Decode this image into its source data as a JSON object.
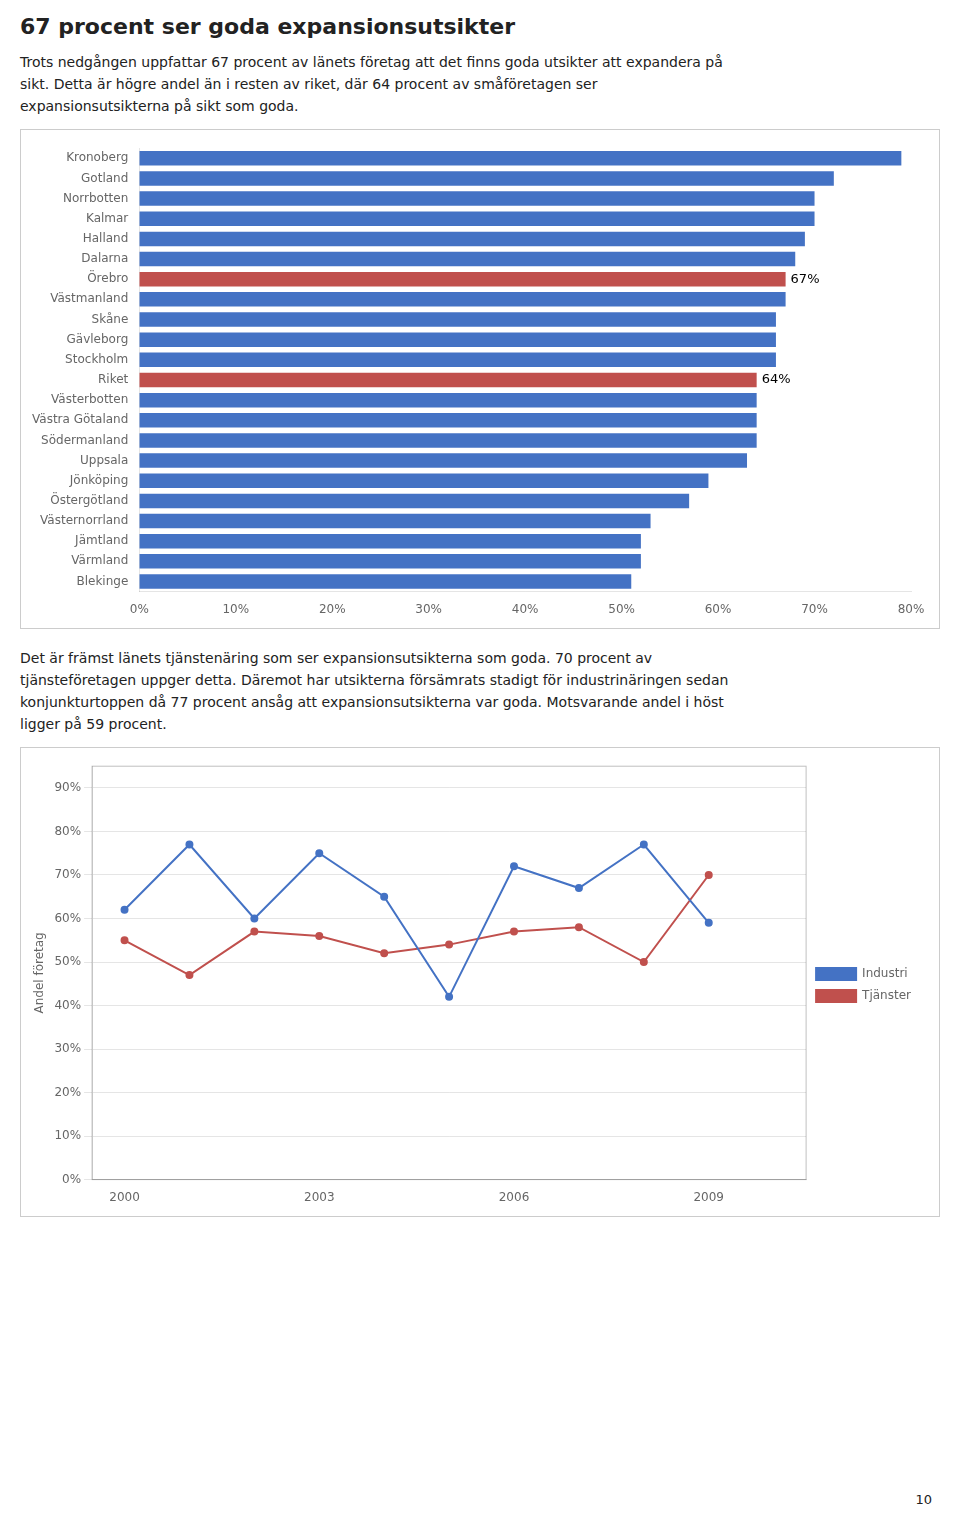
{
  "chart_data": [
    {
      "type": "bar",
      "title": "67 procent ser goda expansionsutsikter",
      "subtitle": [
        "Trots nedgången uppfattar 67 procent av länets företag att det finns goda utsikter att expandera på",
        "sikt. Detta är högre andel än i resten av riket, där 64 procent av småföretagen ser",
        "expansionsutsikterna på sikt som goda."
      ],
      "orientation": "horizontal",
      "categories": [
        "Kronoberg",
        "Gotland",
        "Norrbotten",
        "Kalmar",
        "Halland",
        "Dalarna",
        "Örebro",
        "Västmanland",
        "Skåne",
        "Gävleborg",
        "Stockholm",
        "Riket",
        "Västerbotten",
        "Västra Götaland",
        "Södermanland",
        "Uppsala",
        "Jönköping",
        "Östergötland",
        "Västernorrland",
        "Jämtland",
        "Värmland",
        "Blekinge"
      ],
      "values": [
        79,
        72,
        70,
        70,
        69,
        68,
        67,
        67,
        66,
        66,
        66,
        64,
        64,
        64,
        64,
        63,
        59,
        57,
        53,
        52,
        52,
        51
      ],
      "colors": [
        "#4472C4",
        "#4472C4",
        "#4472C4",
        "#4472C4",
        "#4472C4",
        "#4472C4",
        "#C0504D",
        "#4472C4",
        "#4472C4",
        "#4472C4",
        "#4472C4",
        "#C0504D",
        "#4472C4",
        "#4472C4",
        "#4472C4",
        "#4472C4",
        "#4472C4",
        "#4472C4",
        "#4472C4",
        "#4472C4",
        "#4472C4",
        "#4472C4"
      ],
      "xlim": [
        0,
        80
      ],
      "xticks": [
        {
          "value": 0,
          "label": "0%"
        },
        {
          "value": 10,
          "label": "10%"
        },
        {
          "value": 20,
          "label": "20%"
        },
        {
          "value": 30,
          "label": "30%"
        },
        {
          "value": 40,
          "label": "40%"
        },
        {
          "value": 50,
          "label": "50%"
        },
        {
          "value": 60,
          "label": "60%"
        },
        {
          "value": 70,
          "label": "70%"
        },
        {
          "value": 80,
          "label": "80%"
        }
      ],
      "grid": false,
      "annotations": [
        {
          "category": "Örebro",
          "text": "67%"
        },
        {
          "category": "Riket",
          "text": "64%"
        }
      ]
    },
    {
      "type": "line",
      "subtitle": [
        "Det är främst länets tjänstenäring som ser expansionsutsikterna som goda. 70 procent av",
        "tjänsteföretagen uppger detta. Däremot har utsikterna försämrats stadigt för industrinäringen sedan",
        "konjunkturtoppen då 77 procent ansåg att expansionsutsikterna var goda. Motsvarande andel i höst",
        "ligger på 59 procent."
      ],
      "x": [
        2000,
        2001,
        2002,
        2003,
        2004,
        2005,
        2006,
        2007,
        2008,
        2009
      ],
      "series": [
        {
          "name": "Industri",
          "color": "#4472C4",
          "marker": "circle",
          "line_style": "solid",
          "values": [
            62,
            77,
            60,
            75,
            65,
            42,
            72,
            67,
            77,
            59
          ]
        },
        {
          "name": "Tjänster",
          "color": "#C0504D",
          "marker": "circle",
          "line_style": "solid",
          "values": [
            55,
            47,
            57,
            56,
            52,
            54,
            57,
            58,
            50,
            70
          ]
        }
      ],
      "xlim": [
        1999.5,
        2010.5
      ],
      "xticks": [
        2000,
        2003,
        2006,
        2009
      ],
      "ylim": [
        0,
        95
      ],
      "yticks": [
        {
          "value": 0,
          "label": "0%"
        },
        {
          "value": 10,
          "label": "10%"
        },
        {
          "value": 20,
          "label": "20%"
        },
        {
          "value": 30,
          "label": "30%"
        },
        {
          "value": 40,
          "label": "40%"
        },
        {
          "value": 50,
          "label": "50%"
        },
        {
          "value": 60,
          "label": "60%"
        },
        {
          "value": 70,
          "label": "70%"
        },
        {
          "value": 80,
          "label": "80%"
        },
        {
          "value": 90,
          "label": "90%"
        }
      ],
      "ylabel": "Andel företag",
      "grid": "y",
      "legend": "right"
    }
  ],
  "annotations": [
    {
      "text": "10"
    }
  ]
}
